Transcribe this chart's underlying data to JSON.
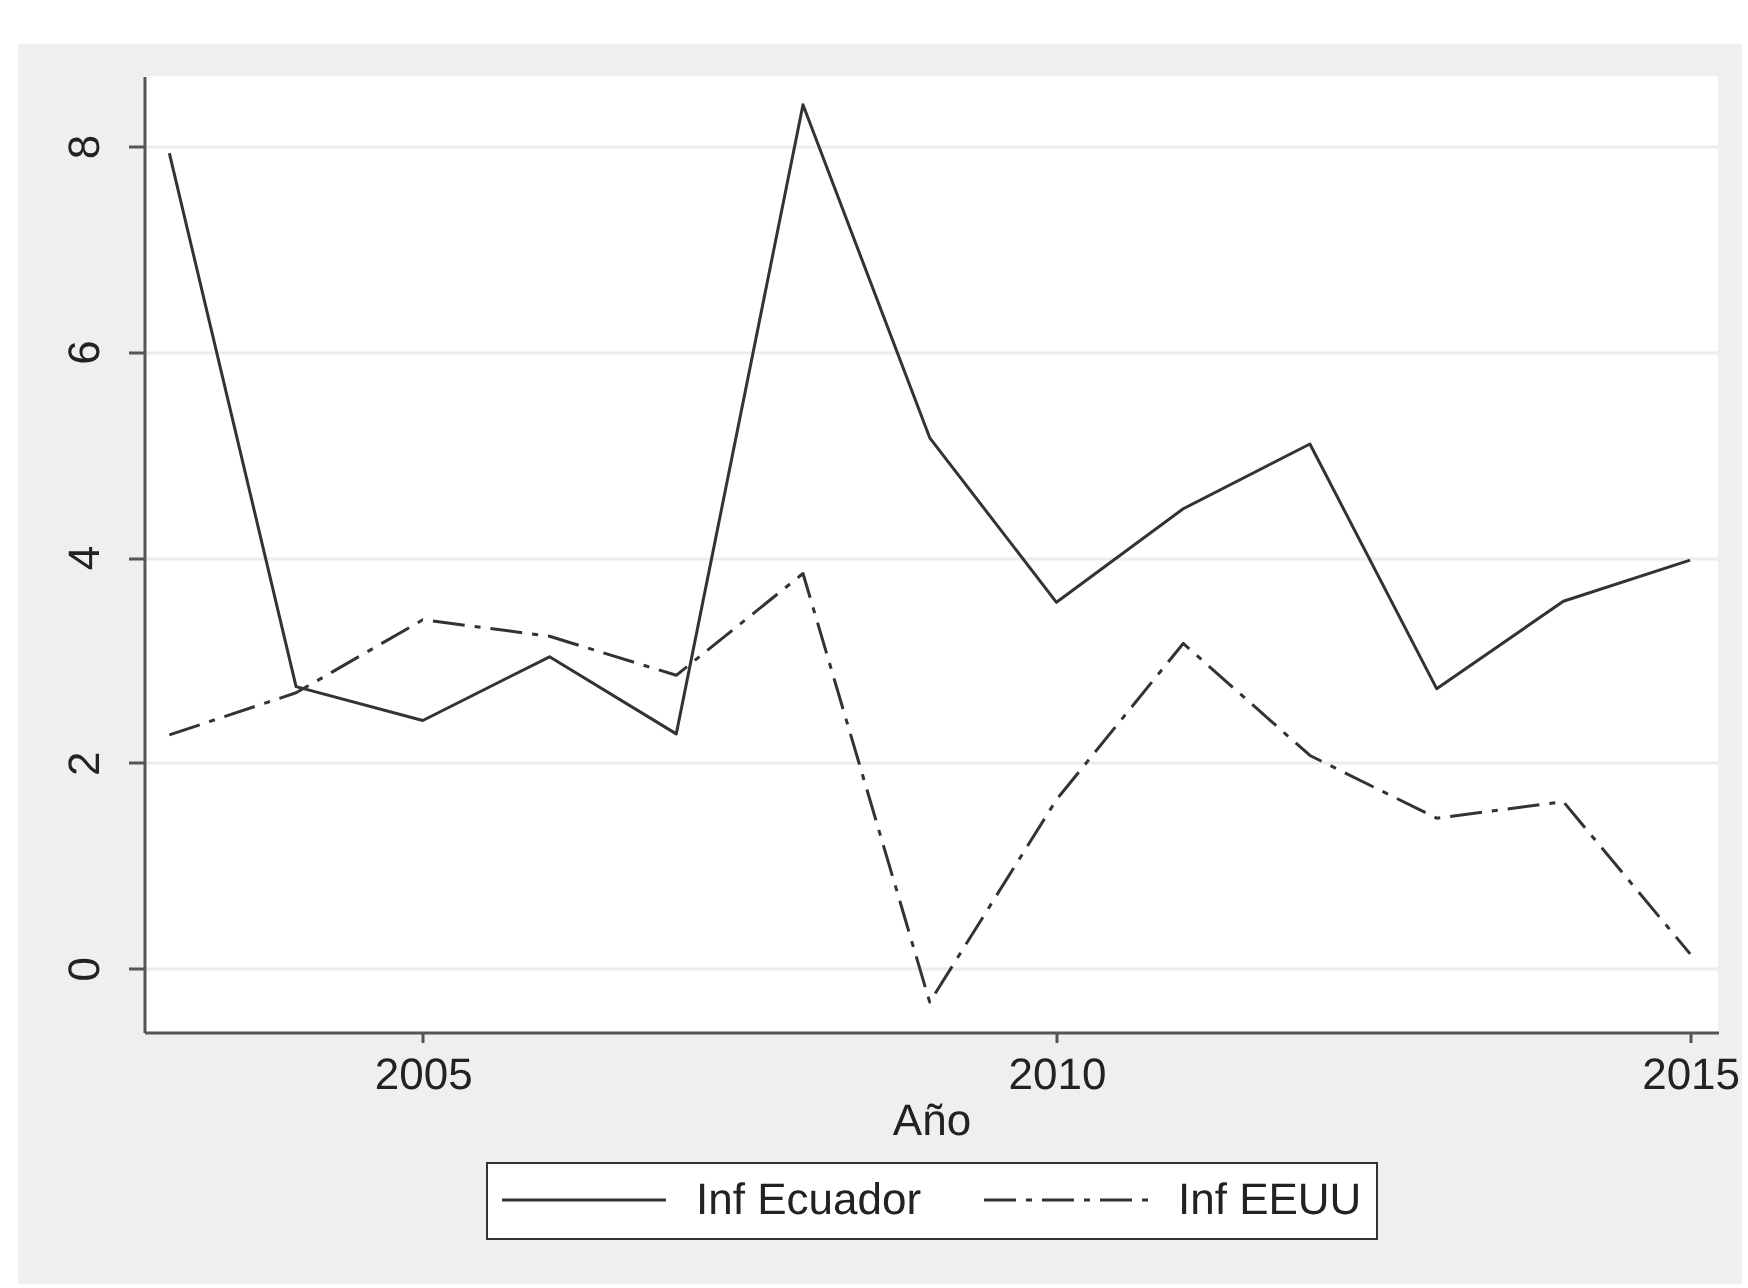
{
  "chart_data": {
    "type": "line",
    "xlabel": "Año",
    "x": [
      2003,
      2004,
      2005,
      2006,
      2007,
      2008,
      2009,
      2010,
      2011,
      2012,
      2013,
      2014,
      2015
    ],
    "series": [
      {
        "name": "Inf Ecuador",
        "color": "#333333",
        "line_style": "solid",
        "values": [
          7.93,
          2.74,
          2.41,
          3.03,
          2.28,
          8.4,
          5.16,
          3.56,
          4.47,
          5.1,
          2.72,
          3.57,
          3.97
        ]
      },
      {
        "name": "Inf EEUU",
        "color": "#333333",
        "line_style": "dashed",
        "values": [
          2.27,
          2.68,
          3.39,
          3.23,
          2.85,
          3.84,
          -0.33,
          1.64,
          3.16,
          2.07,
          1.46,
          1.62,
          0.14
        ]
      }
    ],
    "xlim": [
      2002.8,
      2015.22
    ],
    "xticks": [
      2005,
      2010,
      2015
    ],
    "ylim": [
      -0.62,
      8.68
    ],
    "yticks": [
      0,
      2,
      4,
      6,
      8
    ],
    "grid": "y",
    "legend": "bottom"
  }
}
